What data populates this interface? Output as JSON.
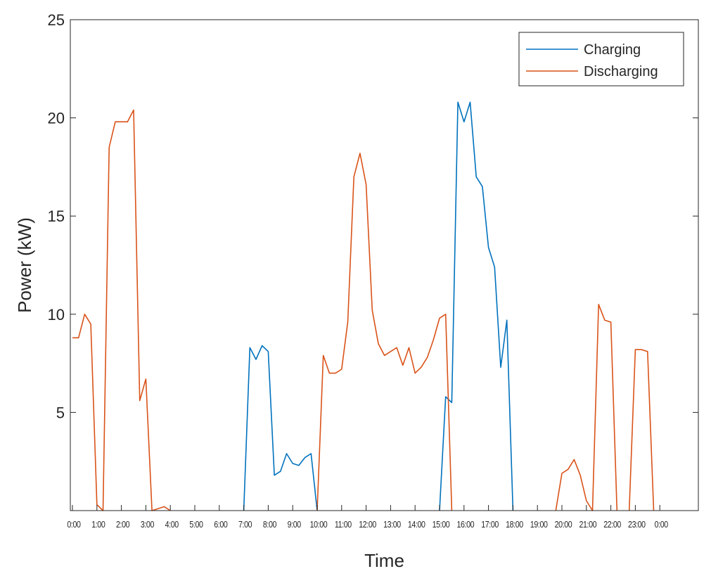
{
  "chart_data": {
    "type": "line",
    "xlabel": "Time",
    "ylabel": "Power (kW)",
    "ylim": [
      0,
      25
    ],
    "yticks": [
      5,
      10,
      15,
      20,
      25
    ],
    "xlim": [
      0,
      25
    ],
    "xtick_labels": [
      "0:00",
      "1:00",
      "2:00",
      "3:00",
      "4:00",
      "5:00",
      "6:00",
      "7:00",
      "8:00",
      "9:00",
      "10:00",
      "11:00",
      "12:00",
      "13:00",
      "14:00",
      "15:00",
      "16:00",
      "17:00",
      "18:00",
      "19:00",
      "20:00",
      "21:00",
      "22:00",
      "23:00",
      "0:00"
    ],
    "grid": false,
    "legend_position": "top-right",
    "series": [
      {
        "name": "Charging",
        "color": "#0072bd",
        "points": [
          [
            7.0,
            0.0
          ],
          [
            7.25,
            8.3
          ],
          [
            7.5,
            7.7
          ],
          [
            7.75,
            8.4
          ],
          [
            8.0,
            8.1
          ],
          [
            8.25,
            1.8
          ],
          [
            8.5,
            2.0
          ],
          [
            8.75,
            2.9
          ],
          [
            9.0,
            2.4
          ],
          [
            9.25,
            2.3
          ],
          [
            9.5,
            2.7
          ],
          [
            9.75,
            2.9
          ],
          [
            10.0,
            0.0
          ],
          null,
          [
            15.0,
            0.0
          ],
          [
            15.25,
            5.8
          ],
          [
            15.5,
            5.5
          ],
          [
            15.75,
            20.8
          ],
          [
            16.0,
            19.8
          ],
          [
            16.25,
            20.8
          ],
          [
            16.5,
            17.0
          ],
          [
            16.75,
            16.5
          ],
          [
            17.0,
            13.4
          ],
          [
            17.25,
            12.4
          ],
          [
            17.5,
            7.3
          ],
          [
            17.75,
            9.7
          ],
          [
            18.0,
            0.0
          ]
        ]
      },
      {
        "name": "Discharging",
        "color": "#d95319",
        "points": [
          [
            0.0,
            8.8
          ],
          [
            0.25,
            8.8
          ],
          [
            0.5,
            10.0
          ],
          [
            0.75,
            9.5
          ],
          [
            1.0,
            0.3
          ],
          [
            1.25,
            0.0
          ],
          [
            1.5,
            18.5
          ],
          [
            1.75,
            19.8
          ],
          [
            2.0,
            19.8
          ],
          [
            2.25,
            19.8
          ],
          [
            2.5,
            20.4
          ],
          [
            2.75,
            5.6
          ],
          [
            3.0,
            6.7
          ],
          [
            3.25,
            0.0
          ],
          [
            3.5,
            0.1
          ],
          [
            3.75,
            0.2
          ],
          [
            4.0,
            0.0
          ],
          null,
          [
            10.0,
            0.0
          ],
          [
            10.25,
            7.9
          ],
          [
            10.5,
            7.0
          ],
          [
            10.75,
            7.0
          ],
          [
            11.0,
            7.2
          ],
          [
            11.25,
            9.6
          ],
          [
            11.5,
            17.0
          ],
          [
            11.75,
            18.2
          ],
          [
            12.0,
            16.6
          ],
          [
            12.25,
            10.2
          ],
          [
            12.5,
            8.5
          ],
          [
            12.75,
            7.9
          ],
          [
            13.0,
            8.1
          ],
          [
            13.25,
            8.3
          ],
          [
            13.5,
            7.4
          ],
          [
            13.75,
            8.3
          ],
          [
            14.0,
            7.0
          ],
          [
            14.25,
            7.3
          ],
          [
            14.5,
            7.8
          ],
          [
            14.75,
            8.7
          ],
          [
            15.0,
            9.8
          ],
          [
            15.25,
            10.0
          ],
          [
            15.5,
            0.0
          ],
          null,
          [
            19.75,
            0.0
          ],
          [
            20.0,
            1.9
          ],
          [
            20.25,
            2.1
          ],
          [
            20.5,
            2.6
          ],
          [
            20.75,
            1.8
          ],
          [
            21.0,
            0.5
          ],
          [
            21.25,
            0.0
          ],
          [
            21.5,
            10.5
          ],
          [
            21.75,
            9.7
          ],
          [
            22.0,
            9.6
          ],
          [
            22.25,
            0.0
          ],
          null,
          [
            22.75,
            0.0
          ],
          [
            23.0,
            8.2
          ],
          [
            23.25,
            8.2
          ],
          [
            23.5,
            8.1
          ],
          [
            23.75,
            0.0
          ]
        ]
      }
    ]
  }
}
